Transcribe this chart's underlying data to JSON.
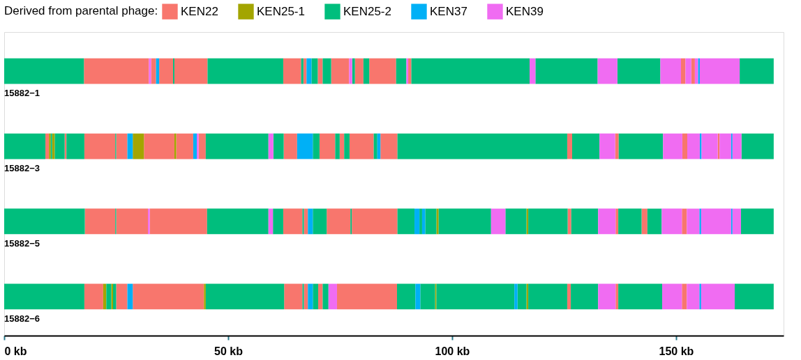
{
  "chart_data": {
    "type": "bar",
    "orientation": "horizontal",
    "legend_title": "Derived from parental phage:",
    "legend": "top",
    "grid": false,
    "categories": [
      "15882−1",
      "15882−3",
      "15882−5",
      "15882−6"
    ],
    "xlim": [
      0,
      174
    ],
    "xticks": [
      {
        "value": 0,
        "label": "0 kb"
      },
      {
        "value": 50,
        "label": "50 kb"
      },
      {
        "value": 100,
        "label": "100 kb"
      },
      {
        "value": 150,
        "label": "150 kb"
      }
    ],
    "series": [
      {
        "name": "KEN22",
        "color": "#f8766d",
        "base": [
          17.8,
          9.2,
          18.0,
          17.9
        ],
        "values": [
          14.5,
          0.8,
          6.8,
          4.2
        ]
      },
      {
        "color": "#f8766d",
        "base": [
          32.8,
          13.5,
          25.0,
          25.0
        ],
        "values": [
          1.1,
          0.4,
          7.1,
          2.5
        ]
      },
      {
        "color": "#f8766d",
        "base": [
          34.6,
          17.9,
          32.5,
          28.7
        ],
        "values": [
          3.1,
          6.9,
          12.8,
          15.9
        ]
      },
      {
        "color": "#f8766d",
        "base": [
          38.0,
          25.0,
          62.3,
          62.5
        ],
        "values": [
          7.4,
          2.5,
          4.3,
          4.1
        ]
      },
      {
        "color": "#f8766d",
        "base": [
          62.3,
          31.2,
          66.9,
          66.9
        ],
        "values": [
          4.0,
          6.8,
          0.9,
          0.9
        ]
      },
      {
        "color": "#f8766d",
        "base": [
          66.8,
          38.4,
          72.0,
          70.1
        ],
        "values": [
          0.7,
          3.8,
          5.3,
          1.0
        ]
      },
      {
        "color": "#f8766d",
        "base": [
          70.0,
          43.4,
          77.6,
          74.3
        ],
        "values": [
          1.1,
          1.6,
          10.2,
          13.4
        ]
      },
      {
        "color": "#f8766d",
        "base": [
          73.0,
          62.4,
          125.8,
          125.7
        ],
        "values": [
          4.0,
          3.0,
          0.8,
          0.8
        ]
      },
      {
        "color": "#f8766d",
        "base": [
          78.3,
          70.4,
          136.5,
          136.5
        ],
        "values": [
          1.9,
          3.5,
          0.6,
          0.6
        ]
      },
      {
        "color": "#f8766d",
        "base": [
          81.5,
          74.9,
          142.3,
          151.3
        ],
        "values": [
          6.0,
          1.0,
          1.3,
          1.1
        ]
      },
      {
        "color": "#f8766d",
        "base": [
          90.2,
          77.1,
          151.3,
          null
        ],
        "values": [
          0.7,
          5.4,
          1.1,
          null
        ]
      },
      {
        "color": "#f8766d",
        "base": [
          151.1,
          84.0,
          null,
          null
        ],
        "values": [
          1.0,
          3.8,
          null,
          null
        ]
      },
      {
        "color": "#f8766d",
        "base": [
          153.4,
          125.7,
          null,
          null
        ],
        "values": [
          0.8,
          1.1,
          null,
          null
        ]
      },
      {
        "color": "#f8766d",
        "base": [
          null,
          136.4,
          null,
          null
        ],
        "values": [
          null,
          0.8,
          null,
          null
        ]
      },
      {
        "color": "#f8766d",
        "base": [
          null,
          151.4,
          null,
          null
        ],
        "values": [
          null,
          1.1,
          null,
          null
        ]
      },
      {
        "color": "#f8766d",
        "base": [
          null,
          159.3,
          null,
          null
        ],
        "values": [
          null,
          0.4,
          null,
          null
        ]
      },
      {
        "name": "KEN25-1",
        "color": "#a3a500",
        "base": [
          null,
          10.0,
          96.5,
          22.1
        ],
        "values": [
          null,
          0.4,
          0.5,
          0.7
        ]
      },
      {
        "color": "#a3a500",
        "base": [
          null,
          10.7,
          116.6,
          23.9
        ],
        "values": [
          null,
          0.6,
          0.4,
          0.4
        ]
      },
      {
        "color": "#a3a500",
        "base": [
          null,
          28.7,
          null,
          44.6
        ],
        "values": [
          null,
          2.5,
          null,
          0.4
        ]
      },
      {
        "color": "#a3a500",
        "base": [
          null,
          38.0,
          null,
          96.2
        ],
        "values": [
          null,
          0.4,
          null,
          0.3
        ]
      },
      {
        "color": "#a3a500",
        "base": [
          null,
          null,
          null,
          116.6
        ],
        "values": [
          null,
          null,
          null,
          0.4
        ]
      },
      {
        "name": "KEN25-2",
        "color": "#00be7d",
        "base": [
          0,
          0,
          0,
          0
        ],
        "values": [
          17.8,
          9.2,
          18.0,
          17.9
        ]
      },
      {
        "color": "#00be7d",
        "base": [
          37.7,
          10.4,
          24.8,
          22.8
        ],
        "values": [
          0.3,
          0.3,
          0.2,
          1.1
        ]
      },
      {
        "color": "#00be7d",
        "base": [
          45.4,
          11.3,
          45.3,
          24.3
        ],
        "values": [
          16.9,
          2.2,
          13.7,
          0.7
        ]
      },
      {
        "color": "#00be7d",
        "base": [
          66.3,
          13.9,
          60.0,
          45.0
        ],
        "values": [
          0.5,
          4.0,
          2.3,
          17.5
        ]
      },
      {
        "color": "#00be7d",
        "base": [
          68.6,
          24.8,
          66.6,
          66.6
        ],
        "values": [
          1.4,
          0.2,
          0.3,
          0.3
        ]
      },
      {
        "color": "#00be7d",
        "base": [
          71.1,
          45.0,
          68.9,
          68.9
        ],
        "values": [
          1.9,
          14.0,
          3.1,
          1.2
        ]
      },
      {
        "color": "#00be7d",
        "base": [
          77.7,
          60.1,
          77.3,
          71.1
        ],
        "values": [
          0.6,
          2.3,
          0.3,
          1.3
        ]
      },
      {
        "color": "#00be7d",
        "base": [
          80.2,
          68.9,
          87.8,
          87.7
        ],
        "values": [
          1.3,
          1.5,
          3.8,
          4.1
        ]
      },
      {
        "color": "#00be7d",
        "base": [
          87.5,
          73.9,
          92.7,
          92.9
        ],
        "values": [
          2.3,
          1.0,
          0.6,
          3.3
        ]
      },
      {
        "color": "#00be7d",
        "base": [
          90.9,
          75.9,
          94.0,
          96.5
        ],
        "values": [
          26.4,
          1.2,
          2.5,
          17.4
        ]
      },
      {
        "color": "#00be7d",
        "base": [
          118.6,
          82.5,
          97.0,
          114.6
        ],
        "values": [
          13.9,
          0.8,
          11.7,
          2.0
        ]
      },
      {
        "color": "#00be7d",
        "base": [
          136.9,
          87.8,
          111.9,
          117.0
        ],
        "values": [
          9.6,
          37.9,
          4.7,
          8.7
        ]
      },
      {
        "color": "#00be7d",
        "base": [
          164.2,
          126.8,
          117.0,
          126.5
        ],
        "values": [
          7.6,
          6.1,
          8.8,
          6.1
        ]
      },
      {
        "color": "#00be7d",
        "base": [
          null,
          137.2,
          126.6,
          137.1
        ],
        "values": [
          null,
          9.9,
          6.0,
          9.8
        ]
      },
      {
        "color": "#00be7d",
        "base": [
          null,
          164.6,
          137.1,
          163.1
        ],
        "values": [
          null,
          7.2,
          5.2,
          8.7
        ]
      },
      {
        "color": "#00be7d",
        "base": [
          null,
          null,
          143.6,
          null
        ],
        "values": [
          null,
          null,
          3.2,
          null
        ]
      },
      {
        "color": "#00be7d",
        "base": [
          null,
          null,
          164.5,
          null
        ],
        "values": [
          null,
          null,
          7.3,
          null
        ]
      },
      {
        "name": "KEN37",
        "color": "#00b0f6",
        "base": [
          33.9,
          27.5,
          67.8,
          27.5
        ],
        "values": [
          0.7,
          1.2,
          1.1,
          1.2
        ]
      },
      {
        "color": "#00b0f6",
        "base": [
          67.5,
          42.2,
          91.6,
          67.8
        ],
        "values": [
          1.1,
          0.8,
          1.1,
          1.1
        ]
      },
      {
        "color": "#00b0f6",
        "base": [
          154.9,
          65.4,
          93.3,
          91.8
        ],
        "values": [
          0.4,
          3.5,
          0.7,
          1.1
        ]
      },
      {
        "color": "#00b0f6",
        "base": [
          null,
          83.3,
          155.2,
          113.9
        ],
        "values": [
          null,
          0.7,
          0.4,
          0.7
        ]
      },
      {
        "color": "#00b0f6",
        "base": [
          null,
          155.3,
          162.3,
          155.2
        ],
        "values": [
          null,
          0.4,
          0.3,
          0.4
        ]
      },
      {
        "color": "#00b0f6",
        "base": [
          null,
          162.3,
          null,
          null
        ],
        "values": [
          null,
          0.3,
          null,
          null
        ]
      },
      {
        "name": "KEN39",
        "color": "#f06cf2",
        "base": [
          32.3,
          43.0,
          32.1,
          72.4
        ],
        "values": [
          0.5,
          0.4,
          0.4,
          1.9
        ]
      },
      {
        "color": "#f06cf2",
        "base": [
          77.0,
          59.0,
          59.0,
          132.6
        ],
        "values": [
          0.7,
          1.1,
          1.0,
          3.9
        ]
      },
      {
        "color": "#f06cf2",
        "base": [
          89.8,
          132.9,
          108.7,
          146.9
        ],
        "values": [
          0.4,
          3.5,
          3.2,
          4.4
        ]
      },
      {
        "color": "#f06cf2",
        "base": [
          117.3,
          147.1,
          132.6,
          152.4
        ],
        "values": [
          1.3,
          4.3,
          3.9,
          2.8
        ]
      },
      {
        "color": "#f06cf2",
        "base": [
          132.5,
          152.5,
          146.8,
          155.6
        ],
        "values": [
          4.4,
          2.8,
          4.5,
          7.5
        ]
      },
      {
        "color": "#f06cf2",
        "base": [
          146.5,
          155.7,
          152.4,
          null
        ],
        "values": [
          4.6,
          3.6,
          2.8,
          null
        ]
      },
      {
        "color": "#f06cf2",
        "base": [
          152.1,
          159.7,
          155.6,
          null
        ],
        "values": [
          1.3,
          2.6,
          6.7,
          null
        ]
      },
      {
        "color": "#f06cf2",
        "base": [
          154.2,
          162.6,
          162.6,
          null
        ],
        "values": [
          0.7,
          2.0,
          1.9,
          null
        ]
      },
      {
        "color": "#f06cf2",
        "base": [
          155.3,
          null,
          null,
          null
        ],
        "values": [
          8.9,
          null,
          null,
          null
        ]
      }
    ]
  }
}
